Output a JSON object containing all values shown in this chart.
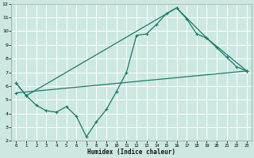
{
  "xlabel": "Humidex (Indice chaleur)",
  "bg_color": "#cce8e0",
  "grid_color": "#ffffff",
  "line_color": "#1a7a6e",
  "line1_x": [
    0,
    1,
    2,
    3,
    4,
    5,
    6,
    7,
    8,
    9,
    10,
    11,
    12,
    13,
    14,
    15,
    16,
    17,
    18,
    19,
    20,
    21,
    22,
    23
  ],
  "line1_y": [
    6.2,
    5.3,
    4.6,
    4.2,
    4.1,
    4.5,
    3.8,
    2.3,
    3.4,
    4.3,
    5.6,
    7.0,
    9.7,
    9.8,
    10.5,
    11.3,
    11.7,
    10.9,
    9.8,
    9.5,
    8.8,
    8.1,
    7.4,
    7.1
  ],
  "line2_x": [
    0,
    1,
    16,
    19,
    23
  ],
  "line2_y": [
    6.2,
    5.3,
    11.7,
    9.5,
    7.1
  ],
  "line3_x": [
    0,
    23
  ],
  "line3_y": [
    5.5,
    7.1
  ],
  "xlim": [
    -0.5,
    23.5
  ],
  "ylim": [
    2,
    12
  ],
  "xticks": [
    0,
    1,
    2,
    3,
    4,
    5,
    6,
    7,
    8,
    9,
    10,
    11,
    12,
    13,
    14,
    15,
    16,
    17,
    18,
    19,
    20,
    21,
    22,
    23
  ],
  "yticks": [
    2,
    3,
    4,
    5,
    6,
    7,
    8,
    9,
    10,
    11,
    12
  ],
  "figsize": [
    3.2,
    2.0
  ],
  "dpi": 100
}
